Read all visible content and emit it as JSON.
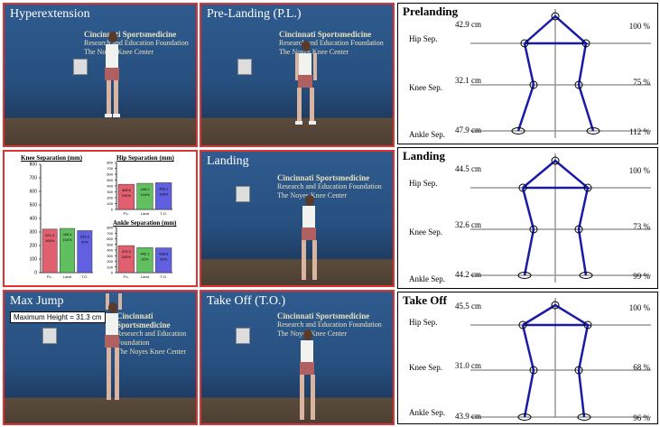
{
  "photos": [
    {
      "id": "hyper",
      "title": "Hyperextension"
    },
    {
      "id": "prelanding",
      "title": "Pre-Landing (P.L.)"
    },
    {
      "id": "landing",
      "title": "Landing"
    },
    {
      "id": "maxjump",
      "title": "Max Jump",
      "max_height": "Maximum Height = 31.3 cm"
    },
    {
      "id": "takeoff",
      "title": "Take Off (T.O.)"
    }
  ],
  "logo": {
    "line1": "Cincinnati Sportsmedicine",
    "line2": "Research and Education Foundation",
    "line3": "The Noyes Knee Center"
  },
  "diagrams": [
    {
      "title": "Prelanding",
      "rows": [
        {
          "name": "Hip Sep.",
          "cm": "42.9 cm",
          "pct": "100 %"
        },
        {
          "name": "Knee Sep.",
          "cm": "32.1 cm",
          "pct": "75 %"
        },
        {
          "name": "Ankle Sep.",
          "cm": "47.9 cm",
          "pct": "112 %"
        }
      ]
    },
    {
      "title": "Landing",
      "rows": [
        {
          "name": "Hip Sep.",
          "cm": "44.5 cm",
          "pct": "100 %"
        },
        {
          "name": "Knee Sep.",
          "cm": "32.6 cm",
          "pct": "73 %"
        },
        {
          "name": "Ankle Sep.",
          "cm": "44.2 cm",
          "pct": "99 %"
        }
      ]
    },
    {
      "title": "Take Off",
      "rows": [
        {
          "name": "Hip Sep.",
          "cm": "45.5 cm",
          "pct": "100 %"
        },
        {
          "name": "Knee Sep.",
          "cm": "31.0 cm",
          "pct": "68 %"
        },
        {
          "name": "Ankle Sep.",
          "cm": "43.9 cm",
          "pct": "96 %"
        }
      ]
    }
  ],
  "chart_data": [
    {
      "type": "bar",
      "title": "Knee Separation (mm)",
      "categories": [
        "P.L.",
        "Land",
        "T.O."
      ],
      "values": [
        321.2,
        326.4,
        310.2
      ],
      "value_labels": [
        "321.2",
        "326.4",
        "310.2"
      ],
      "pct_labels": [
        "100%",
        "102%",
        "97%"
      ],
      "ylim": [
        0,
        800
      ],
      "yticks": [
        0,
        100,
        200,
        300,
        400,
        500,
        600,
        700,
        800
      ],
      "colors": [
        "#e06070",
        "#60c060",
        "#6060e0"
      ]
    },
    {
      "type": "bar",
      "title": "Hip Separation (mm)",
      "categories": [
        "P.L.",
        "Land",
        "T.O."
      ],
      "values": [
        428.6,
        445.0,
        455.1
      ],
      "value_labels": [
        "428.6",
        "445.0",
        "455.1"
      ],
      "pct_labels": [
        "100%",
        "104%",
        "106%"
      ],
      "ylim": [
        0,
        800
      ],
      "yticks": [
        0,
        100,
        200,
        300,
        400,
        500,
        600,
        700,
        800
      ],
      "colors": [
        "#e06070",
        "#60c060",
        "#6060e0"
      ]
    },
    {
      "type": "bar",
      "title": "Ankle Separation (mm)",
      "categories": [
        "P.L.",
        "Land",
        "T.O."
      ],
      "values": [
        479.3,
        442.1,
        438.8
      ],
      "value_labels": [
        "479.3",
        "442.1",
        "438.8"
      ],
      "pct_labels": [
        "100%",
        "92%",
        "92%"
      ],
      "ylim": [
        0,
        800
      ],
      "yticks": [
        0,
        100,
        200,
        300,
        400,
        500,
        600,
        700,
        800
      ],
      "colors": [
        "#e06070",
        "#60c060",
        "#6060e0"
      ]
    }
  ]
}
